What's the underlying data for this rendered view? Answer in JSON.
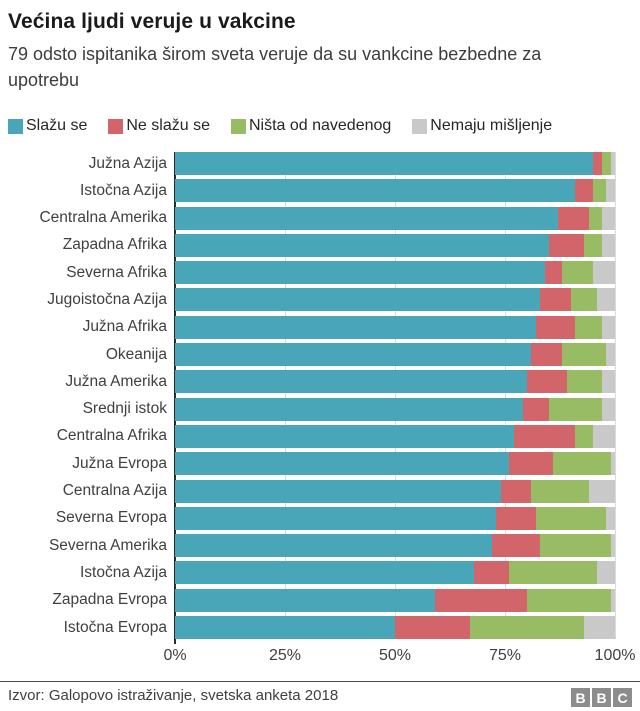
{
  "header": {
    "title": "Većina ljudi veruje u vakcine",
    "subtitle": "79 odsto ispitanika širom sveta veruje da su vankcine bezbedne za upotrebu"
  },
  "chart_data": {
    "type": "bar",
    "stacked": true,
    "orientation": "horizontal",
    "grid": "vertical-lines",
    "legend_position": "top",
    "xlim": [
      0,
      100
    ],
    "x_ticks": [
      {
        "value": 0,
        "label": "0%"
      },
      {
        "value": 25,
        "label": "25%"
      },
      {
        "value": 50,
        "label": "50%"
      },
      {
        "value": 75,
        "label": "75%"
      },
      {
        "value": 100,
        "label": "100%"
      }
    ],
    "categories": [
      "Južna Azija",
      "Istočna Azija",
      "Centralna Amerika",
      "Zapadna Afrika",
      "Severna Afrika",
      "Jugoistočna Azija",
      "Južna Afrika",
      "Okeanija",
      "Južna Amerika",
      "Srednji istok",
      "Centralna Afrika",
      "Južna Evropa",
      "Centralna Azija",
      "Severna Evropa",
      "Severna Amerika",
      "Istočna Azija",
      "Zapadna Evropa",
      "Istočna Evropa"
    ],
    "series": [
      {
        "name": "Slažu se",
        "color": "#49a6b8",
        "values": [
          95,
          91,
          87,
          85,
          84,
          83,
          82,
          81,
          80,
          79,
          77,
          76,
          74,
          73,
          72,
          68,
          59,
          50
        ]
      },
      {
        "name": "Ne slažu se",
        "color": "#d2656a",
        "values": [
          2,
          4,
          7,
          8,
          4,
          7,
          9,
          7,
          9,
          6,
          14,
          10,
          7,
          9,
          11,
          8,
          21,
          17
        ]
      },
      {
        "name": "Ništa od navedenog",
        "color": "#97bc64",
        "values": [
          2,
          3,
          3,
          4,
          7,
          6,
          6,
          10,
          8,
          12,
          4,
          13,
          13,
          16,
          16,
          20,
          19,
          26
        ]
      },
      {
        "name": "Nemaju mišljenje",
        "color": "#c9c9c9",
        "values": [
          1,
          2,
          3,
          3,
          5,
          4,
          3,
          2,
          3,
          3,
          5,
          1,
          6,
          2,
          1,
          4,
          1,
          7
        ]
      }
    ]
  },
  "footer": {
    "source": "Izvor: Galopovo istraživanje, svetska anketa 2018",
    "logo_blocks": [
      "B",
      "B",
      "C"
    ]
  }
}
